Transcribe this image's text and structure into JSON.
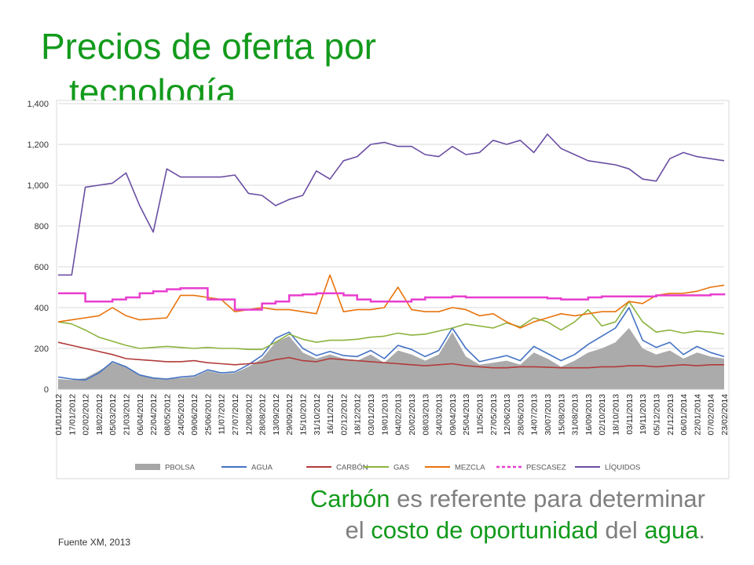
{
  "slide": {
    "title_line1": "Precios de oferta por",
    "title_line2": "tecnología",
    "caption": {
      "line1_hl": "Carbón",
      "line1_rest": " es referente para determinar",
      "line2_a": "el ",
      "line2_hl1": "costo de oportunidad",
      "line2_b": " del ",
      "line2_hl2": "agua",
      "line2_c": "."
    },
    "source": "Fuente XM, 2013"
  },
  "chart_data": {
    "type": "line",
    "ylim": [
      0,
      1400
    ],
    "yticks": [
      "0",
      "200",
      "400",
      "600",
      "800",
      "1,000",
      "1,200",
      "1,400"
    ],
    "ytick_values": [
      0,
      200,
      400,
      600,
      800,
      1000,
      1200,
      1400
    ],
    "grid": true,
    "legend": "bottom",
    "categories": [
      "01/01/2012",
      "17/01/2012",
      "02/02/2012",
      "18/02/2012",
      "05/03/2012",
      "21/03/2012",
      "06/04/2012",
      "22/04/2012",
      "08/05/2012",
      "24/05/2012",
      "09/06/2012",
      "25/06/2012",
      "11/07/2012",
      "27/07/2012",
      "12/08/2012",
      "28/08/2012",
      "13/09/2012",
      "29/09/2012",
      "15/10/2012",
      "31/10/2012",
      "16/11/2012",
      "02/12/2012",
      "18/12/2012",
      "03/01/2013",
      "19/01/2013",
      "04/02/2013",
      "20/02/2013",
      "08/03/2013",
      "24/03/2013",
      "09/04/2013",
      "25/04/2013",
      "11/05/2013",
      "27/05/2013",
      "12/06/2013",
      "28/06/2013",
      "14/07/2013",
      "30/07/2013",
      "15/08/2013",
      "31/08/2013",
      "16/09/2013",
      "02/10/2013",
      "18/10/2013",
      "03/11/2013",
      "19/11/2013",
      "05/12/2013",
      "21/12/2013",
      "06/01/2014",
      "22/01/2014",
      "07/02/2014",
      "23/02/2014"
    ],
    "series": [
      {
        "name": "PBOLSA",
        "kind": "area",
        "color": "#a6a6a6",
        "values": [
          50,
          45,
          55,
          90,
          130,
          110,
          70,
          55,
          50,
          55,
          60,
          90,
          75,
          80,
          110,
          150,
          230,
          260,
          180,
          150,
          170,
          150,
          140,
          170,
          130,
          190,
          170,
          140,
          170,
          280,
          160,
          120,
          130,
          140,
          120,
          180,
          150,
          110,
          140,
          180,
          200,
          230,
          300,
          200,
          170,
          190,
          150,
          180,
          160,
          150
        ]
      },
      {
        "name": "AGUA",
        "kind": "line",
        "color": "#4472c4",
        "values": [
          60,
          50,
          45,
          80,
          135,
          110,
          70,
          55,
          50,
          60,
          65,
          95,
          80,
          85,
          120,
          165,
          250,
          280,
          200,
          165,
          185,
          165,
          160,
          190,
          150,
          215,
          195,
          160,
          190,
          300,
          200,
          135,
          150,
          165,
          140,
          210,
          175,
          140,
          170,
          220,
          260,
          300,
          400,
          240,
          205,
          230,
          170,
          210,
          180,
          160
        ]
      },
      {
        "name": "CARBÓN",
        "kind": "line",
        "color": "#b23b3b",
        "values": [
          230,
          215,
          200,
          185,
          170,
          150,
          145,
          140,
          135,
          135,
          140,
          130,
          125,
          120,
          125,
          130,
          145,
          155,
          140,
          135,
          150,
          145,
          140,
          135,
          130,
          125,
          120,
          115,
          120,
          125,
          115,
          110,
          105,
          105,
          110,
          110,
          108,
          105,
          105,
          105,
          110,
          110,
          115,
          115,
          110,
          115,
          120,
          115,
          120,
          120
        ]
      },
      {
        "name": "GAS",
        "kind": "line",
        "color": "#8db33f",
        "values": [
          330,
          320,
          290,
          255,
          235,
          215,
          200,
          205,
          210,
          205,
          200,
          205,
          200,
          200,
          195,
          195,
          230,
          270,
          245,
          230,
          240,
          240,
          245,
          255,
          260,
          275,
          265,
          270,
          285,
          300,
          320,
          310,
          300,
          325,
          305,
          350,
          330,
          290,
          330,
          390,
          310,
          330,
          430,
          330,
          280,
          290,
          275,
          285,
          280,
          270
        ]
      },
      {
        "name": "MEZCLA",
        "kind": "line",
        "color": "#e8730c",
        "values": [
          330,
          340,
          350,
          360,
          400,
          360,
          340,
          345,
          350,
          460,
          460,
          450,
          440,
          380,
          390,
          400,
          390,
          390,
          380,
          370,
          560,
          380,
          390,
          390,
          400,
          500,
          390,
          380,
          380,
          400,
          390,
          360,
          370,
          330,
          300,
          330,
          350,
          370,
          360,
          370,
          380,
          380,
          430,
          420,
          460,
          470,
          470,
          480,
          500,
          510
        ]
      },
      {
        "name": "PESCASEZ",
        "kind": "dashed",
        "color": "#e83ecf",
        "values": [
          470,
          470,
          430,
          430,
          440,
          450,
          470,
          480,
          490,
          495,
          495,
          440,
          440,
          390,
          390,
          420,
          430,
          460,
          465,
          470,
          470,
          460,
          440,
          430,
          430,
          430,
          440,
          450,
          450,
          455,
          450,
          450,
          450,
          450,
          450,
          450,
          445,
          440,
          440,
          450,
          455,
          455,
          455,
          455,
          460,
          460,
          460,
          460,
          465,
          470
        ]
      },
      {
        "name": "LÍQUIDOS",
        "kind": "line",
        "color": "#6a4ea3",
        "values": [
          560,
          560,
          990,
          1000,
          1010,
          1060,
          900,
          770,
          1080,
          1040,
          1040,
          1040,
          1040,
          1050,
          960,
          950,
          900,
          930,
          950,
          1070,
          1030,
          1120,
          1140,
          1200,
          1210,
          1190,
          1190,
          1150,
          1140,
          1190,
          1150,
          1160,
          1220,
          1200,
          1220,
          1160,
          1250,
          1180,
          1150,
          1120,
          1110,
          1100,
          1080,
          1030,
          1020,
          1130,
          1160,
          1140,
          1130,
          1120
        ]
      }
    ]
  }
}
